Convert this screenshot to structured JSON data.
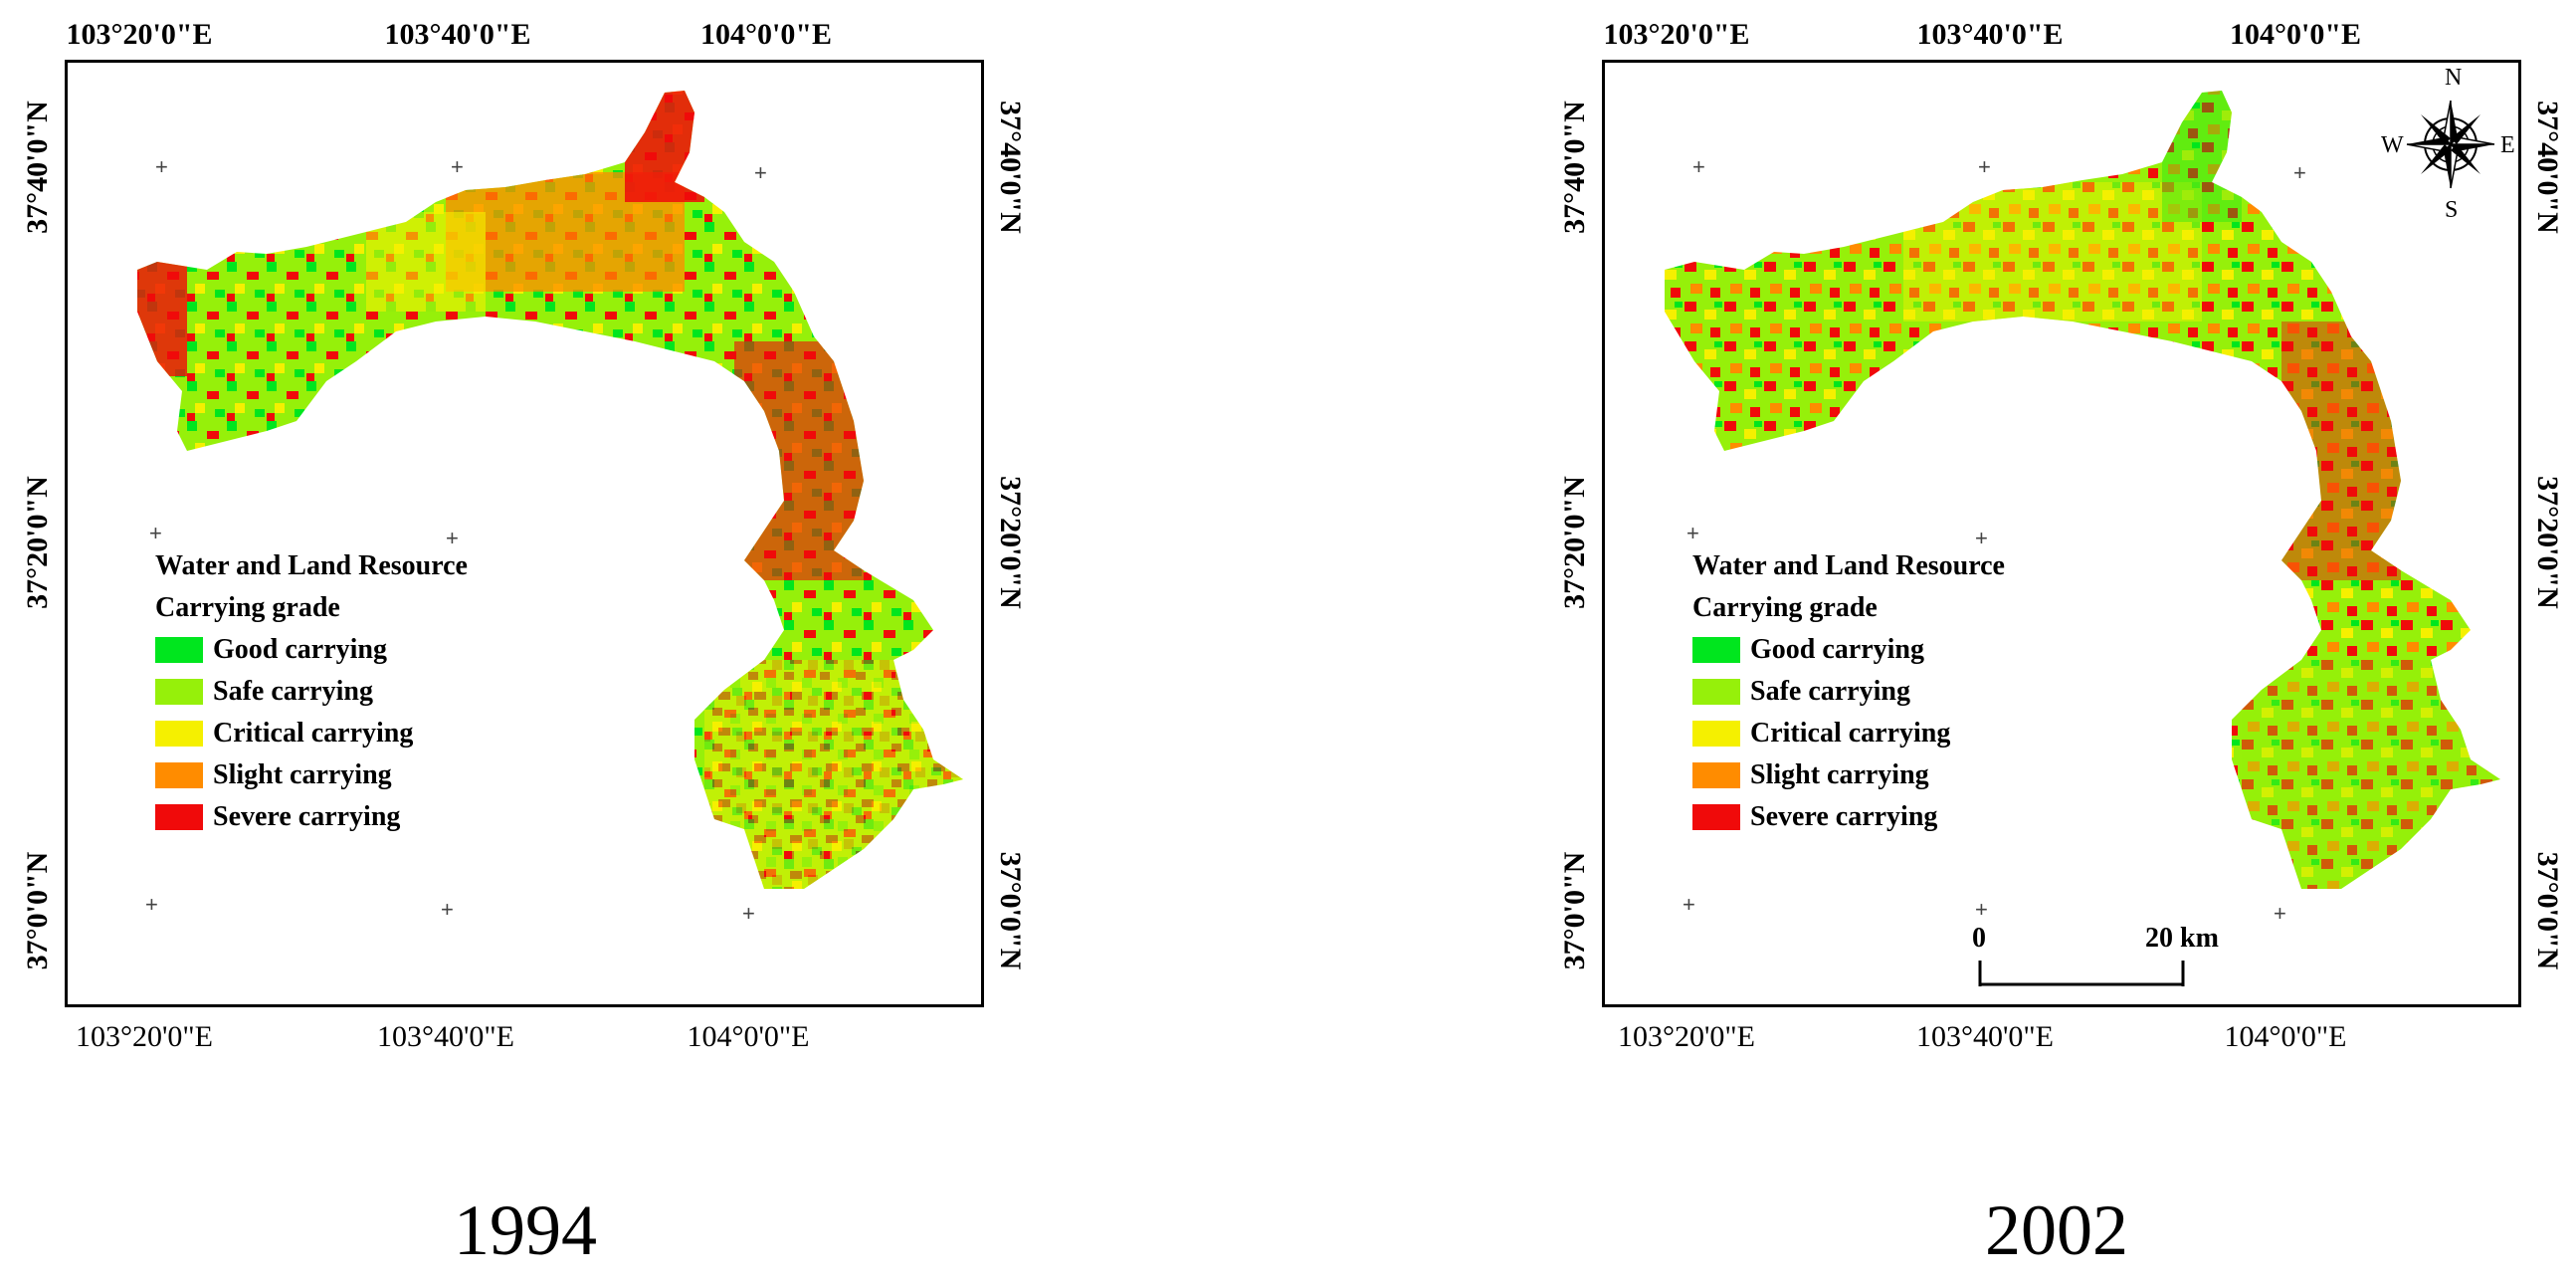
{
  "panels": [
    {
      "year": "1994",
      "top_lon": [
        "103°20'0\"E",
        "103°40'0\"E",
        "104°0'0\"E"
      ],
      "bottom_lon": [
        "103°20'0\"E",
        "103°40'0\"E",
        "104°0'0\"E"
      ],
      "left_lat": [
        "37°40'0\"N",
        "37°20'0\"N",
        "37°0'0\"N"
      ],
      "right_lat": [
        "37°40'0\"N",
        "37°20'0\"N",
        "37°0'0\"N"
      ]
    },
    {
      "year": "2002",
      "top_lon": [
        "103°20'0\"E",
        "103°40'0\"E",
        "104°0'0\"E"
      ],
      "bottom_lon": [
        "103°20'0\"E",
        "103°40'0\"E",
        "104°0'0\"E"
      ],
      "left_lat": [
        "37°40'0\"N",
        "37°20'0\"N",
        "37°0'0\"N"
      ],
      "right_lat": [
        "37°40'0\"N",
        "37°20'0\"N",
        "37°0'0\"N"
      ]
    }
  ],
  "legend": {
    "title_line1": "Water and Land Resource",
    "title_line2": "Carrying grade",
    "items": [
      {
        "label": "Good carrying",
        "color": "#00e61e"
      },
      {
        "label": "Safe carrying",
        "color": "#96f00a"
      },
      {
        "label": "Critical carrying",
        "color": "#f5f000"
      },
      {
        "label": "Slight carrying",
        "color": "#ff8c00"
      },
      {
        "label": "Severe carrying",
        "color": "#f00a0a"
      }
    ]
  },
  "compass": {
    "n": "N",
    "s": "S",
    "e": "E",
    "w": "W"
  },
  "scale_bar": {
    "start": "0",
    "end": "20 km"
  },
  "grid_marker": "+"
}
